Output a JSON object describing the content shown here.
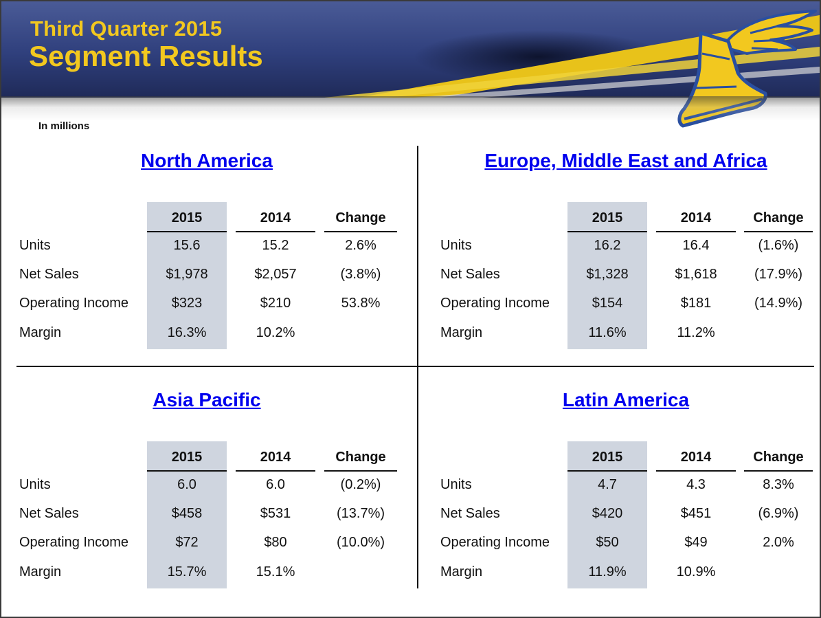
{
  "header": {
    "title_small": "Third Quarter 2015",
    "title_big": "Segment Results"
  },
  "units_note": "In millions",
  "colors": {
    "title_gold": "#f2c81f",
    "banner_blue": "#2f3f7c",
    "link_blue": "#0000ee",
    "highlight_col": "#cfd5df"
  },
  "logo": "goodyear-wingfoot-icon",
  "columns": [
    "2015",
    "2014",
    "Change"
  ],
  "row_labels": [
    "Units",
    "Net Sales",
    "Operating Income",
    "Margin"
  ],
  "segments": {
    "na": {
      "title": "North America",
      "rows": [
        [
          "15.6",
          "15.2",
          "2.6%"
        ],
        [
          "$1,978",
          "$2,057",
          "(3.8%)"
        ],
        [
          "$323",
          "$210",
          "53.8%"
        ],
        [
          "16.3%",
          "10.2%",
          ""
        ]
      ]
    },
    "emea": {
      "title": "Europe, Middle East and Africa",
      "rows": [
        [
          "16.2",
          "16.4",
          "(1.6%)"
        ],
        [
          "$1,328",
          "$1,618",
          "(17.9%)"
        ],
        [
          "$154",
          "$181",
          "(14.9%)"
        ],
        [
          "11.6%",
          "11.2%",
          ""
        ]
      ]
    },
    "ap": {
      "title": "Asia Pacific",
      "rows": [
        [
          "6.0",
          "6.0",
          "(0.2%)"
        ],
        [
          "$458",
          "$531",
          "(13.7%)"
        ],
        [
          "$72",
          "$80",
          "(10.0%)"
        ],
        [
          "15.7%",
          "15.1%",
          ""
        ]
      ]
    },
    "la": {
      "title": "Latin America",
      "rows": [
        [
          "4.7",
          "4.3",
          "8.3%"
        ],
        [
          "$420",
          "$451",
          "(6.9%)"
        ],
        [
          "$50",
          "$49",
          "2.0%"
        ],
        [
          "11.9%",
          "10.9%",
          ""
        ]
      ]
    }
  }
}
